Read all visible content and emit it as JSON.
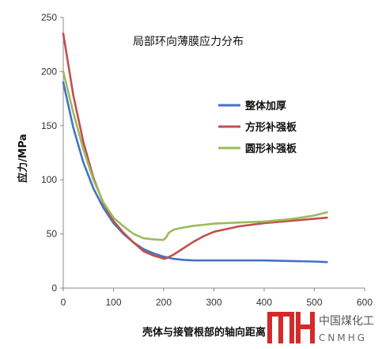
{
  "chart_data": {
    "type": "line",
    "title": "局部环向薄膜应力分布",
    "xlabel": "壳体与接管根部的轴向距离",
    "ylabel": "应力/MPa",
    "xlim": [
      0,
      600
    ],
    "ylim": [
      0,
      250
    ],
    "xticks": [
      "0",
      "100",
      "200",
      "300",
      "400",
      "500",
      "600"
    ],
    "yticks": [
      "0",
      "50",
      "100",
      "150",
      "200",
      "250"
    ],
    "grid": false,
    "legend_position": "right",
    "series": [
      {
        "name": "整体加厚",
        "color": "#4472C4",
        "x": [
          0,
          20,
          40,
          60,
          80,
          100,
          120,
          140,
          160,
          180,
          200,
          220,
          240,
          260,
          280,
          300,
          350,
          400,
          450,
          500,
          525
        ],
        "y": [
          190,
          148,
          116,
          92,
          74,
          60,
          50,
          42,
          36,
          32,
          29,
          27,
          26,
          25.5,
          25.5,
          25.5,
          25.5,
          25.5,
          25,
          24.5,
          24
        ]
      },
      {
        "name": "方形补强板",
        "color": "#C0504D",
        "x": [
          0,
          20,
          40,
          60,
          80,
          100,
          120,
          140,
          160,
          180,
          195,
          200,
          205,
          220,
          240,
          260,
          280,
          300,
          350,
          400,
          450,
          500,
          525
        ],
        "y": [
          235,
          178,
          135,
          102,
          78,
          62,
          51,
          42,
          34,
          30,
          28,
          27,
          27.5,
          31,
          37,
          43,
          48,
          52,
          57,
          60,
          62,
          64,
          65
        ]
      },
      {
        "name": "圆形补强板",
        "color": "#9BBB59",
        "x": [
          0,
          20,
          40,
          60,
          80,
          100,
          120,
          140,
          160,
          180,
          195,
          200,
          205,
          210,
          220,
          240,
          260,
          280,
          300,
          350,
          400,
          450,
          500,
          525
        ],
        "y": [
          200,
          162,
          128,
          100,
          79,
          65,
          57,
          50,
          46,
          45,
          44.5,
          44.5,
          47,
          51,
          54,
          56,
          57.5,
          58.5,
          59.5,
          60.5,
          61.5,
          63.5,
          67,
          70
        ]
      }
    ]
  },
  "watermark": {
    "cn": "中国煤化工",
    "en": "CNMHG",
    "logo_color": "#D42A2A"
  }
}
